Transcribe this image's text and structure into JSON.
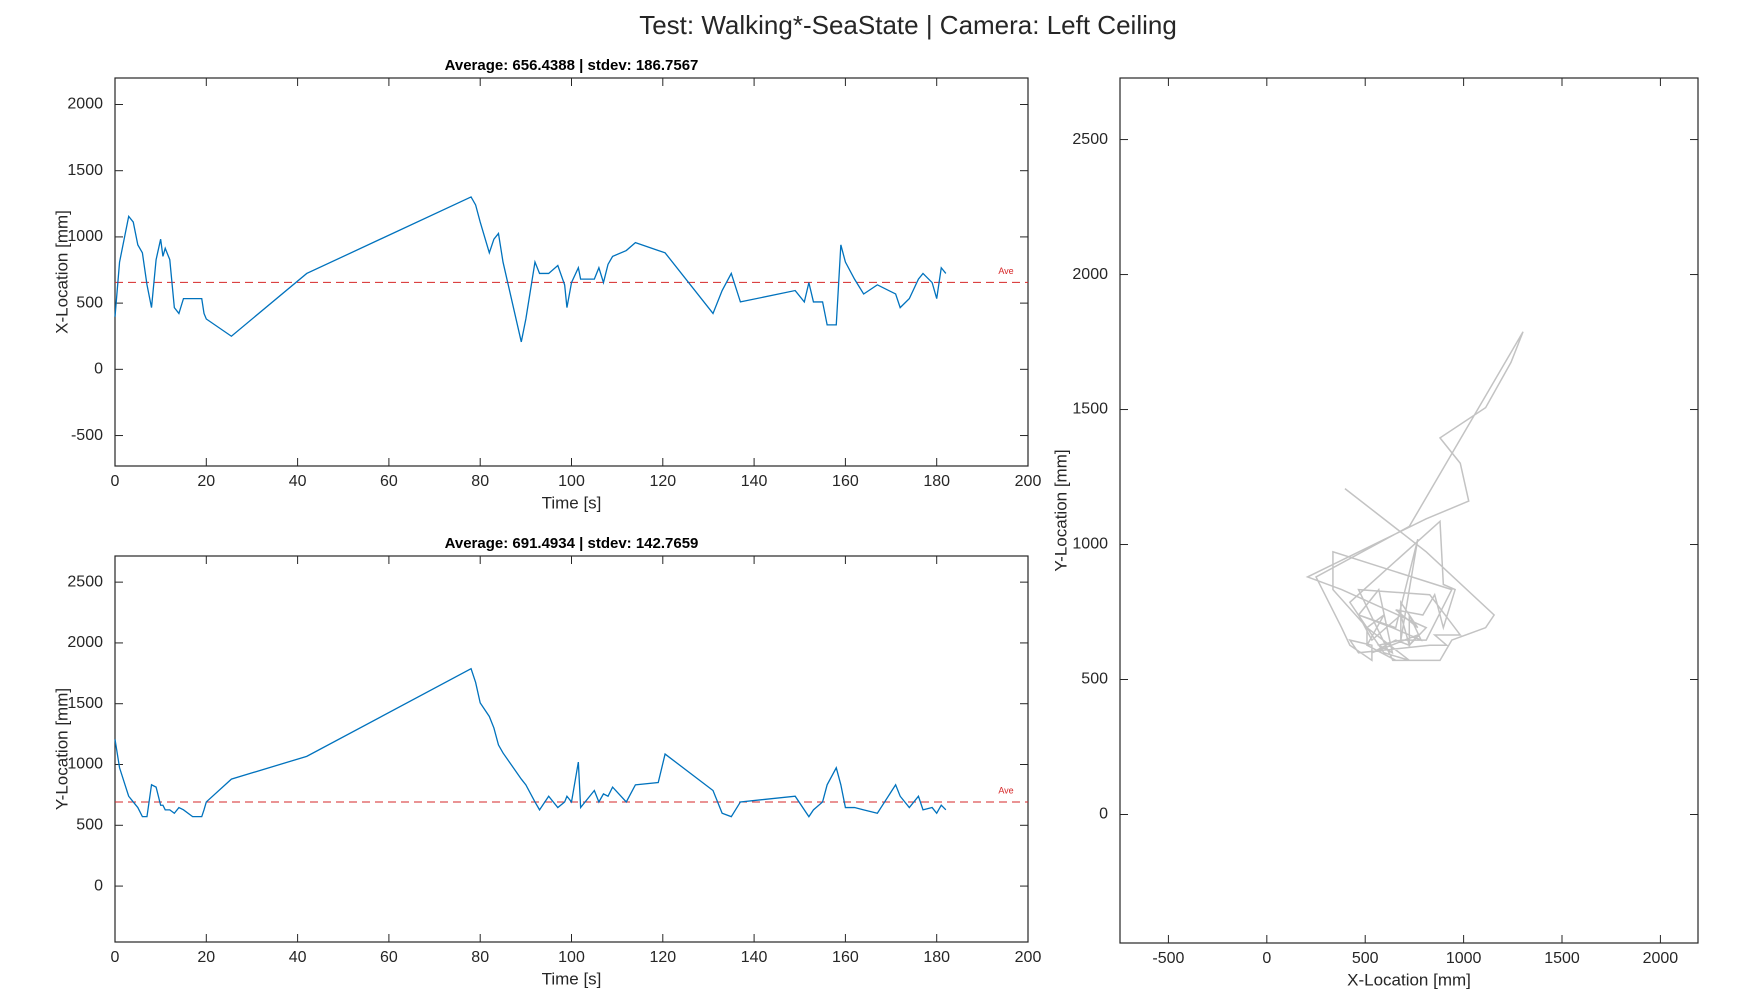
{
  "title": "Test: Walking*-SeaState  |  Camera: Left Ceiling",
  "mean_label": "Ave",
  "chart_data": [
    {
      "type": "line",
      "subtitle": "Average: 656.4388  |  stdev: 186.7567",
      "xlabel": "Time [s]",
      "ylabel": "X-Location [mm]",
      "xlim": [
        0,
        200
      ],
      "ylim": [
        -730,
        2200
      ],
      "xticks": [
        0,
        20,
        40,
        60,
        80,
        100,
        120,
        140,
        160,
        180,
        200
      ],
      "yticks": [
        -500,
        0,
        500,
        1000,
        1500,
        2000
      ],
      "color": "#0072bd",
      "mean": 656.4388,
      "mean_color": "#d62728",
      "x": [
        0,
        1,
        3,
        4,
        5,
        6,
        7,
        8,
        9,
        10,
        10.5,
        11,
        12,
        13,
        14,
        15,
        17,
        19,
        19.5,
        20,
        25.5,
        42,
        78,
        79,
        80,
        82,
        83,
        84,
        85,
        89,
        90,
        92,
        93,
        95,
        97,
        98.5,
        99,
        100,
        101.5,
        102,
        105,
        106,
        107,
        108,
        109,
        112,
        114,
        119,
        120.5,
        131,
        133,
        135,
        137,
        149,
        151,
        152,
        153,
        155,
        156,
        158,
        159,
        160,
        162,
        164,
        167,
        171,
        172,
        174,
        176,
        177,
        179,
        180,
        181,
        182
      ],
      "values": [
        397,
        810,
        1155,
        1112,
        940,
        880,
        640,
        466,
        828,
        983,
        853,
        914,
        828,
        466,
        422,
        534,
        534,
        534,
        422,
        380,
        250,
        724,
        1302,
        1241,
        1112,
        880,
        983,
        1026,
        810,
        207,
        380,
        810,
        724,
        724,
        784,
        638,
        466,
        655,
        767,
        681,
        681,
        767,
        655,
        793,
        853,
        897,
        957,
        897,
        880,
        422,
        595,
        724,
        509,
        595,
        509,
        655,
        509,
        509,
        336,
        336,
        940,
        810,
        681,
        569,
        638,
        569,
        466,
        534,
        681,
        724,
        655,
        534,
        767,
        724
      ]
    },
    {
      "type": "line",
      "subtitle": "Average: 691.4934  |  stdev: 142.7659",
      "xlabel": "Time [s]",
      "ylabel": "Y-Location [mm]",
      "xlim": [
        0,
        200
      ],
      "ylim": [
        -460,
        2715
      ],
      "xticks": [
        0,
        20,
        40,
        60,
        80,
        100,
        120,
        140,
        160,
        180,
        200
      ],
      "yticks": [
        0,
        500,
        1000,
        1500,
        2000,
        2500
      ],
      "color": "#0072bd",
      "mean": 691.4934,
      "mean_color": "#d62728",
      "x": [
        0,
        1,
        3,
        4,
        5,
        6,
        7,
        8,
        9,
        10,
        10.5,
        11,
        12,
        13,
        14,
        15,
        17,
        19,
        19.5,
        20,
        25.5,
        42,
        78,
        79,
        80,
        82,
        83,
        84,
        85,
        89,
        90,
        92,
        93,
        95,
        97,
        98.5,
        99,
        100,
        101.5,
        102,
        105,
        106,
        107,
        108,
        109,
        112,
        114,
        119,
        120.5,
        131,
        133,
        135,
        137,
        149,
        151,
        152,
        153,
        155,
        156,
        158,
        159,
        160,
        162,
        164,
        167,
        171,
        172,
        174,
        176,
        177,
        179,
        180,
        181,
        182
      ],
      "values": [
        1207,
        973,
        739,
        692,
        646,
        571,
        571,
        833,
        814,
        665,
        665,
        627,
        627,
        599,
        646,
        627,
        571,
        571,
        627,
        692,
        880,
        1067,
        1788,
        1675,
        1507,
        1395,
        1301,
        1161,
        1095,
        880,
        833,
        692,
        627,
        739,
        646,
        692,
        739,
        692,
        1020,
        646,
        786,
        692,
        758,
        739,
        814,
        692,
        833,
        852,
        1086,
        786,
        599,
        571,
        692,
        739,
        627,
        571,
        627,
        692,
        833,
        973,
        833,
        646,
        646,
        627,
        599,
        833,
        739,
        646,
        739,
        627,
        646,
        599,
        665,
        627
      ]
    },
    {
      "type": "trajectory",
      "xlabel": "X-Location [mm]",
      "ylabel": "Y-Location [mm]",
      "xlim": [
        -746,
        2191
      ],
      "ylim": [
        -476,
        2728
      ],
      "xticks": [
        -500,
        0,
        500,
        1000,
        1500,
        2000
      ],
      "yticks": [
        0,
        500,
        1000,
        1500,
        2000,
        2500
      ],
      "color": "#b4b4b4"
    }
  ]
}
